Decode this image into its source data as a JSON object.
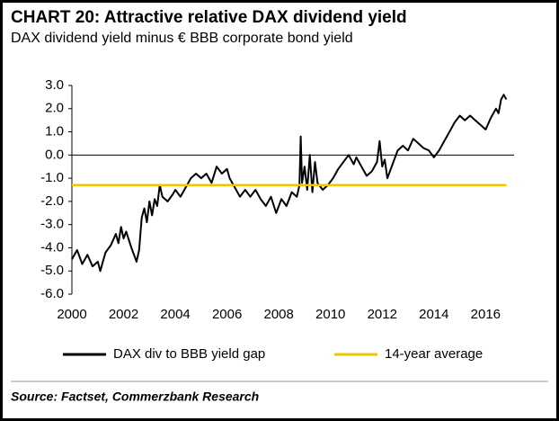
{
  "chart_data": {
    "type": "line",
    "title": "CHART 20: Attractive relative DAX dividend yield",
    "subtitle": "DAX dividend yield minus € BBB corporate bond yield",
    "source": "Source: Factset, Commerzbank Research",
    "xlim": [
      2000,
      2017.1
    ],
    "xticks": [
      2000,
      2002,
      2004,
      2006,
      2008,
      2010,
      2012,
      2014,
      2016
    ],
    "ylim": [
      -6,
      3
    ],
    "yticks": [
      {
        "value": 3,
        "label": "3.0"
      },
      {
        "value": 2,
        "label": "2.0"
      },
      {
        "value": 1,
        "label": "1.0"
      },
      {
        "value": 0,
        "label": "0.0"
      },
      {
        "value": -1,
        "label": "-1.0"
      },
      {
        "value": -2,
        "label": "-2.0"
      },
      {
        "value": -3,
        "label": "-3.0"
      },
      {
        "value": -4,
        "label": "-4.0"
      },
      {
        "value": -5,
        "label": "-5.0"
      },
      {
        "value": -6,
        "label": "-6.0"
      }
    ],
    "grid": false,
    "legend": "bottom",
    "series": [
      {
        "name": "DAX div to BBB yield gap",
        "color": "#000000",
        "x": [
          2000.0,
          2000.2,
          2000.4,
          2000.6,
          2000.8,
          2001.0,
          2001.1,
          2001.3,
          2001.5,
          2001.7,
          2001.8,
          2001.9,
          2002.0,
          2002.1,
          2002.3,
          2002.4,
          2002.5,
          2002.6,
          2002.7,
          2002.8,
          2002.9,
          2003.0,
          2003.1,
          2003.2,
          2003.3,
          2003.4,
          2003.5,
          2003.7,
          2003.9,
          2004.0,
          2004.2,
          2004.4,
          2004.6,
          2004.8,
          2005.0,
          2005.2,
          2005.4,
          2005.6,
          2005.8,
          2006.0,
          2006.1,
          2006.3,
          2006.5,
          2006.7,
          2006.9,
          2007.1,
          2007.3,
          2007.5,
          2007.7,
          2007.9,
          2008.1,
          2008.3,
          2008.5,
          2008.7,
          2008.8,
          2008.85,
          2008.9,
          2009.0,
          2009.1,
          2009.2,
          2009.3,
          2009.4,
          2009.5,
          2009.7,
          2009.9,
          2010.1,
          2010.3,
          2010.5,
          2010.7,
          2010.9,
          2011.0,
          2011.2,
          2011.4,
          2011.6,
          2011.8,
          2011.9,
          2012.0,
          2012.1,
          2012.2,
          2012.4,
          2012.6,
          2012.8,
          2013.0,
          2013.2,
          2013.4,
          2013.6,
          2013.8,
          2014.0,
          2014.2,
          2014.4,
          2014.6,
          2014.8,
          2015.0,
          2015.2,
          2015.4,
          2015.6,
          2015.8,
          2016.0,
          2016.2,
          2016.4,
          2016.5,
          2016.6,
          2016.7,
          2016.8
        ],
        "values": [
          -4.5,
          -4.1,
          -4.7,
          -4.3,
          -4.8,
          -4.6,
          -5.0,
          -4.2,
          -3.9,
          -3.4,
          -3.8,
          -3.1,
          -3.6,
          -3.3,
          -4.0,
          -4.3,
          -4.6,
          -4.1,
          -2.7,
          -2.3,
          -2.9,
          -2.0,
          -2.6,
          -1.9,
          -2.2,
          -1.3,
          -1.8,
          -2.0,
          -1.7,
          -1.5,
          -1.8,
          -1.4,
          -1.0,
          -0.8,
          -1.0,
          -0.8,
          -1.2,
          -0.5,
          -0.8,
          -0.6,
          -1.0,
          -1.4,
          -1.8,
          -1.5,
          -1.8,
          -1.5,
          -1.9,
          -2.2,
          -1.8,
          -2.5,
          -1.9,
          -2.2,
          -1.6,
          -1.8,
          -1.3,
          0.8,
          -1.2,
          -0.5,
          -1.5,
          0.0,
          -1.6,
          -0.3,
          -1.2,
          -1.5,
          -1.3,
          -1.0,
          -0.6,
          -0.3,
          0.0,
          -0.4,
          -0.1,
          -0.5,
          -0.9,
          -0.7,
          -0.3,
          0.6,
          -0.5,
          -0.2,
          -1.0,
          -0.4,
          0.2,
          0.4,
          0.2,
          0.7,
          0.5,
          0.3,
          0.2,
          -0.1,
          0.2,
          0.6,
          1.0,
          1.4,
          1.7,
          1.5,
          1.7,
          1.5,
          1.3,
          1.1,
          1.6,
          2.0,
          1.8,
          2.4,
          2.6,
          2.4
        ]
      },
      {
        "name": "14-year average",
        "color": "#f2c500",
        "x": [
          2000.0,
          2016.8
        ],
        "values": [
          -1.3,
          -1.3
        ]
      }
    ]
  }
}
